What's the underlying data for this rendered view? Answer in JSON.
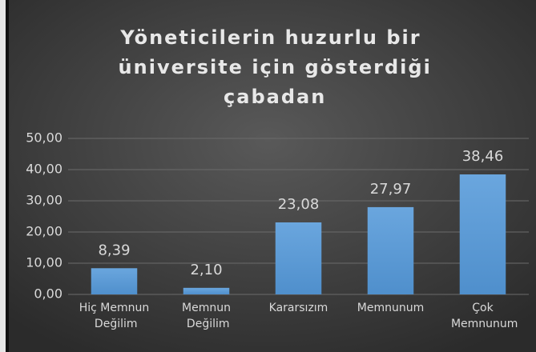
{
  "chart_data": {
    "type": "bar",
    "title": "Yöneticilerin huzurlu bir üniversite için gösterdiği çabadan",
    "categories": [
      "Hiç Memnun Değilim",
      "Memnun Değilim",
      "Kararsızım",
      "Memnunum",
      "Çok Memnunum"
    ],
    "values": [
      8.39,
      2.1,
      23.08,
      27.97,
      38.46
    ],
    "value_labels": [
      "8,39",
      "2,10",
      "23,08",
      "27,97",
      "38,46"
    ],
    "color": "#5b9bd5",
    "ylim": [
      0,
      50
    ],
    "yticks": [
      {
        "value": 0,
        "label": "0,00"
      },
      {
        "value": 10,
        "label": "10,00"
      },
      {
        "value": 20,
        "label": "20,00"
      },
      {
        "value": 30,
        "label": "30,00"
      },
      {
        "value": 40,
        "label": "40,00"
      },
      {
        "value": 50,
        "label": "50,00"
      }
    ],
    "grid": true
  }
}
